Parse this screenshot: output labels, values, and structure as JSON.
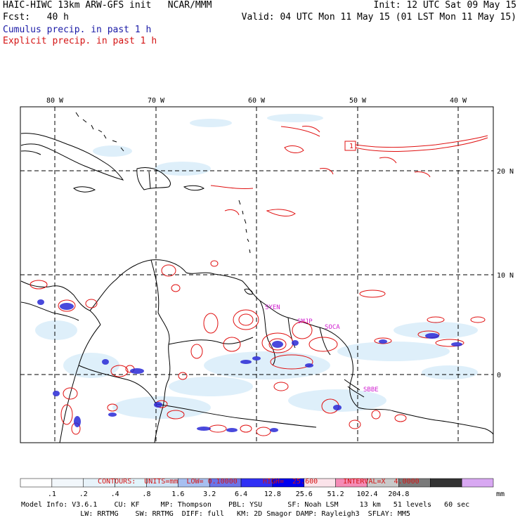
{
  "header": {
    "title": "HAIC-HIWC 13km ARW-GFS init   NCAR/MMM",
    "forecast": "Fcst:   40 h",
    "init": "Init: 12 UTC Sat 09 May 15",
    "valid": "Valid: 04 UTC Mon 11 May 15 (01 LST Mon 11 May 15)",
    "legend_cumulus": "Cumulus precip. in past 1 h",
    "legend_explicit": "Explicit precip. in past 1 h"
  },
  "map": {
    "lon_labels": [
      "80 W",
      "70 W",
      "60 W",
      "50 W",
      "40 W"
    ],
    "lat_labels": [
      "20 N",
      "10 N",
      "0"
    ],
    "station_labels": [
      "SYEN",
      "SMJP",
      "SOCA",
      "SBBE"
    ],
    "marker_label": "1",
    "colors": {
      "coast": "#000000",
      "explicit": "#e01010",
      "cumulus": "#2a2ad6",
      "grid": "#000000"
    }
  },
  "contour_info": {
    "contours": "CONTOURS:",
    "units": "UNITS=mm",
    "low": "LOW= 0.10000",
    "high": "HIGH=  25.600",
    "interval": "INTERVAL=X  4.0000"
  },
  "colorbar": {
    "labels": [
      ".1",
      ".2",
      ".4",
      ".8",
      "1.6",
      "3.2",
      "6.4",
      "12.8",
      "25.6",
      "51.2",
      "102.4",
      "204.8"
    ],
    "unit": "mm",
    "colors": [
      "#ffffff",
      "#f2f7fb",
      "#e8f3fa",
      "#e2f4fb",
      "#cfe4f7",
      "#a7bff0",
      "#6b74e8",
      "#3030f5",
      "#0000ee",
      "#fbe3ea",
      "#f58bb6",
      "#c9c9c9",
      "#7a7a7a",
      "#333333",
      "#d8a8f2"
    ]
  },
  "footer": {
    "line1": "Model Info: V3.6.1    CU: KF     MP: Thompson    PBL: YSU      SF: Noah LSM     13 km   51 levels   60 sec",
    "line2": "              LW: RRTMG    SW: RRTMG  DIFF: full   KM: 2D Smagor DAMP: Rayleigh3  SFLAY: MM5"
  }
}
